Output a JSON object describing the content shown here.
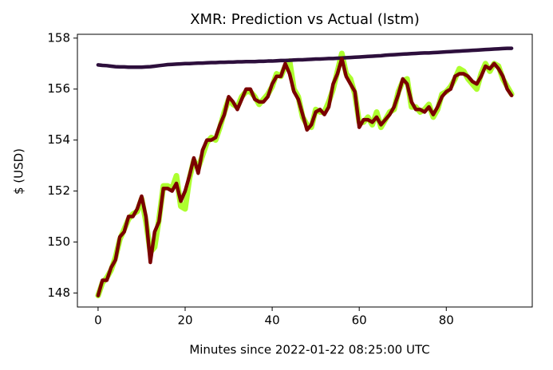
{
  "chart_data": {
    "type": "line",
    "title": "XMR: Prediction vs Actual (lstm)",
    "xlabel": "Minutes since 2022-01-22 08:25:00 UTC",
    "ylabel": "$ (USD)",
    "x": [
      0,
      1,
      2,
      3,
      4,
      5,
      6,
      7,
      8,
      9,
      10,
      11,
      12,
      13,
      14,
      15,
      16,
      17,
      18,
      19,
      20,
      21,
      22,
      23,
      24,
      25,
      26,
      27,
      28,
      29,
      30,
      31,
      32,
      33,
      34,
      35,
      36,
      37,
      38,
      39,
      40,
      41,
      42,
      43,
      44,
      45,
      46,
      47,
      48,
      49,
      50,
      51,
      52,
      53,
      54,
      55,
      56,
      57,
      58,
      59,
      60,
      61,
      62,
      63,
      64,
      65,
      66,
      67,
      68,
      69,
      70,
      71,
      72,
      73,
      74,
      75,
      76,
      77,
      78,
      79,
      80,
      81,
      82,
      83,
      84,
      85,
      86,
      87,
      88,
      89,
      90,
      91,
      92,
      93,
      94,
      95
    ],
    "series": [
      {
        "color": "#adff2f",
        "width": 7,
        "values": [
          147.9,
          148.4,
          148.6,
          148.9,
          149.4,
          150.1,
          150.5,
          150.9,
          151.1,
          151.2,
          151.7,
          150.8,
          149.6,
          149.8,
          150.9,
          152.2,
          152.2,
          152.1,
          152.6,
          151.4,
          151.3,
          152.5,
          153.2,
          152.9,
          153.4,
          153.9,
          154.1,
          154.0,
          154.5,
          155.1,
          155.6,
          155.4,
          155.3,
          155.7,
          155.9,
          155.9,
          155.7,
          155.4,
          155.6,
          155.8,
          156.1,
          156.6,
          156.5,
          156.9,
          157.1,
          156.0,
          155.7,
          154.9,
          154.6,
          154.5,
          155.2,
          155.1,
          155.1,
          155.5,
          156.0,
          156.7,
          157.4,
          156.6,
          156.4,
          155.8,
          154.7,
          154.7,
          154.9,
          154.6,
          155.1,
          154.5,
          154.8,
          155.1,
          155.2,
          155.9,
          156.3,
          156.4,
          155.3,
          155.3,
          155.1,
          155.2,
          155.4,
          154.9,
          155.2,
          155.8,
          155.9,
          156.1,
          156.4,
          156.8,
          156.7,
          156.4,
          156.2,
          156.0,
          156.6,
          157.0,
          156.7,
          157.0,
          156.9,
          156.4,
          156.1,
          155.8
        ]
      },
      {
        "color": "#2d0f3c",
        "width": 4.5,
        "values": [
          156.95,
          156.93,
          156.92,
          156.9,
          156.88,
          156.87,
          156.87,
          156.86,
          156.86,
          156.86,
          156.86,
          156.87,
          156.88,
          156.9,
          156.92,
          156.94,
          156.96,
          156.97,
          156.98,
          156.99,
          157.0,
          157.0,
          157.01,
          157.02,
          157.02,
          157.03,
          157.04,
          157.04,
          157.05,
          157.05,
          157.06,
          157.06,
          157.07,
          157.07,
          157.08,
          157.08,
          157.08,
          157.09,
          157.09,
          157.1,
          157.1,
          157.11,
          157.12,
          157.12,
          157.13,
          157.14,
          157.15,
          157.15,
          157.16,
          157.17,
          157.18,
          157.18,
          157.19,
          157.2,
          157.2,
          157.21,
          157.22,
          157.23,
          157.24,
          157.25,
          157.26,
          157.27,
          157.28,
          157.29,
          157.3,
          157.31,
          157.33,
          157.34,
          157.35,
          157.36,
          157.37,
          157.38,
          157.39,
          157.4,
          157.41,
          157.42,
          157.42,
          157.43,
          157.44,
          157.45,
          157.46,
          157.47,
          157.48,
          157.49,
          157.5,
          157.51,
          157.52,
          157.53,
          157.54,
          157.55,
          157.56,
          157.57,
          157.58,
          157.59,
          157.6,
          157.6
        ]
      },
      {
        "color": "#7a0000",
        "width": 4.5,
        "values": [
          147.9,
          148.5,
          148.5,
          149.0,
          149.3,
          150.2,
          150.4,
          151.0,
          151.0,
          151.3,
          151.8,
          151.0,
          149.2,
          150.4,
          150.8,
          152.1,
          152.1,
          152.0,
          152.3,
          151.6,
          152.0,
          152.6,
          153.3,
          152.7,
          153.6,
          154.0,
          154.0,
          154.1,
          154.6,
          155.0,
          155.7,
          155.5,
          155.2,
          155.6,
          156.0,
          156.0,
          155.6,
          155.5,
          155.5,
          155.7,
          156.2,
          156.5,
          156.5,
          157.0,
          156.6,
          155.9,
          155.6,
          155.0,
          154.4,
          154.6,
          155.1,
          155.2,
          155.0,
          155.3,
          156.2,
          156.6,
          157.2,
          156.5,
          156.2,
          155.9,
          154.5,
          154.8,
          154.8,
          154.7,
          154.9,
          154.6,
          154.8,
          155.0,
          155.3,
          155.8,
          156.4,
          156.2,
          155.5,
          155.2,
          155.2,
          155.1,
          155.3,
          155.0,
          155.3,
          155.7,
          155.9,
          156.0,
          156.5,
          156.6,
          156.6,
          156.5,
          156.3,
          156.2,
          156.5,
          156.9,
          156.8,
          157.0,
          156.8,
          156.5,
          156.0,
          155.75
        ]
      }
    ],
    "xlim": [
      -4.75,
      99.75
    ],
    "ylim": [
      147.45,
      158.15
    ],
    "xticks": [
      0,
      20,
      40,
      60,
      80
    ],
    "yticks": [
      148,
      150,
      152,
      154,
      156,
      158
    ]
  }
}
